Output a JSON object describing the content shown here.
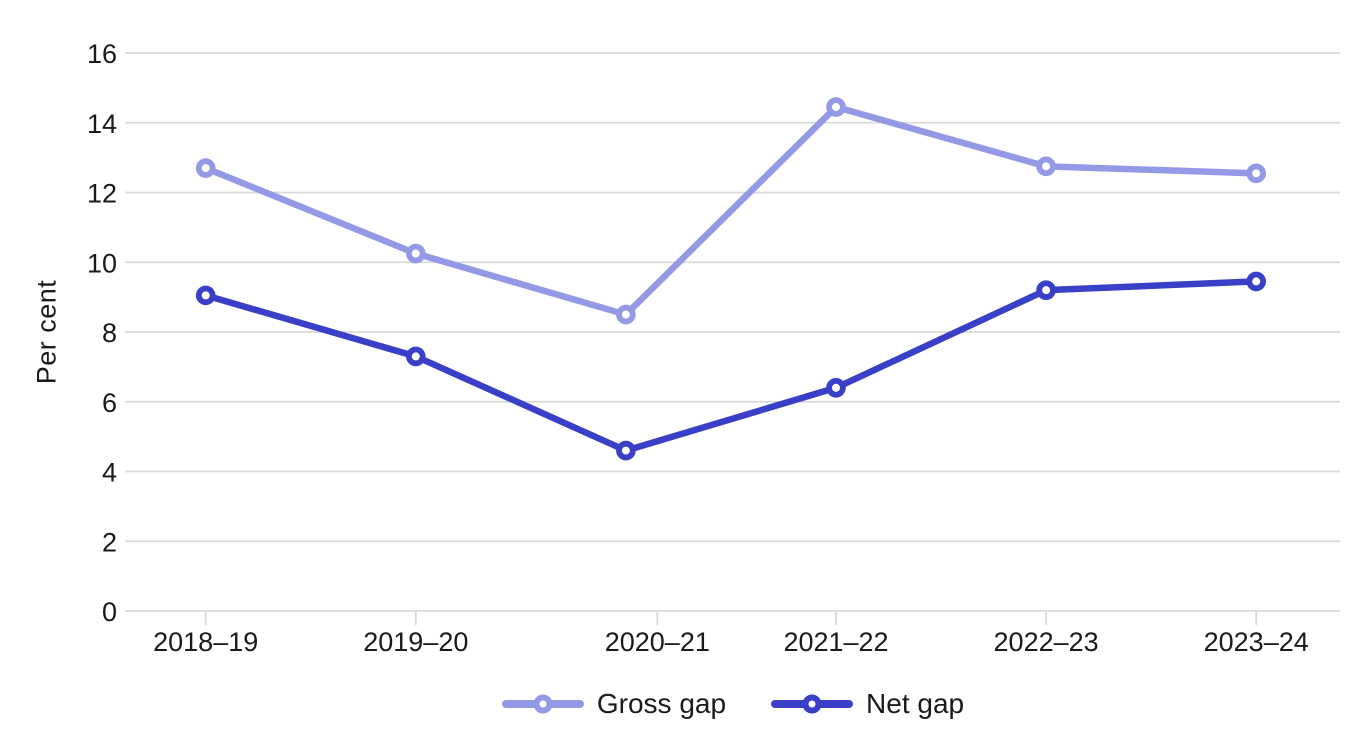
{
  "chart_data": {
    "type": "line",
    "title": "",
    "xlabel": "",
    "ylabel": "Per cent",
    "categories": [
      "2018–19",
      "2019–20",
      "2020–21",
      "2021–22",
      "2022–23",
      "2023–24"
    ],
    "series": [
      {
        "name": "Gross gap",
        "color": "#9499E6",
        "values": [
          12.7,
          10.25,
          8.5,
          14.45,
          12.75,
          12.55
        ]
      },
      {
        "name": "Net gap",
        "color": "#3A3FC8",
        "values": [
          9.05,
          7.3,
          4.6,
          6.4,
          9.2,
          9.45
        ]
      }
    ],
    "ylim": [
      0,
      16
    ],
    "yticks": [
      0,
      2,
      4,
      6,
      8,
      10,
      12,
      14,
      16
    ],
    "grid": "horizontal",
    "grid_color": "#D9D9D9",
    "text_color": "#1A1A1A",
    "marker": "open-circle",
    "legend_position": "bottom"
  }
}
